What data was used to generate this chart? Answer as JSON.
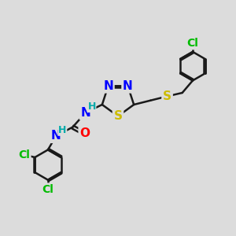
{
  "bg_color": "#dcdcdc",
  "bond_color": "#1a1a1a",
  "atom_colors": {
    "N": "#0000ff",
    "S": "#ccbb00",
    "O": "#ff0000",
    "Cl": "#00bb00",
    "H": "#00aaaa",
    "C": "#1a1a1a"
  },
  "bond_width": 1.8,
  "font_size": 11,
  "ring_font_size": 11,
  "small_font": 9
}
